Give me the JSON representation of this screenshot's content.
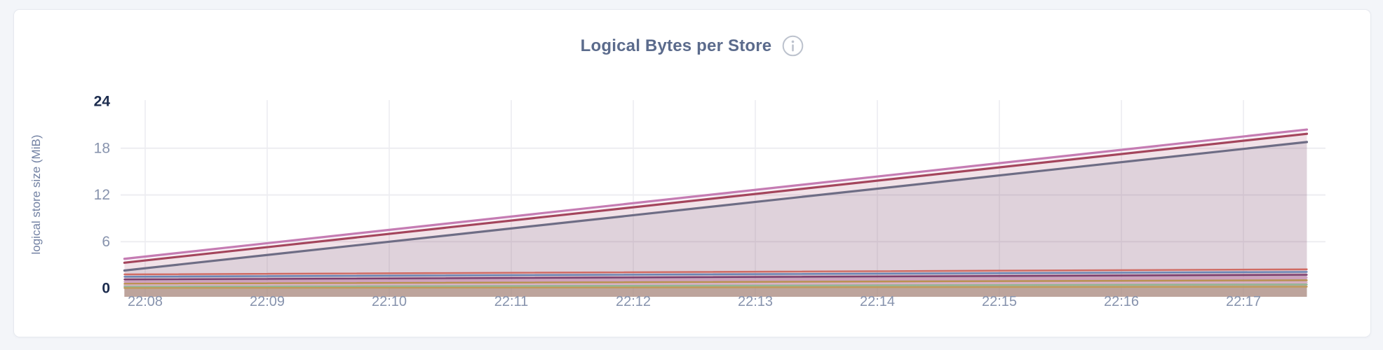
{
  "card": {
    "title": "Logical Bytes per Store"
  },
  "icons": {
    "info": "circled lowercase i"
  },
  "colors": {
    "page_background": "#f3f5f9",
    "card_background": "#ffffff",
    "card_border": "#e6e9ef",
    "title_text": "#5b6b8c",
    "axis_tick_regular": "#8793ad",
    "axis_tick_bold": "#1c2c4e",
    "axis_title": "#7180a2",
    "gridline": "#ededf1",
    "info_icon": "#bcc2cd"
  },
  "chart_data": {
    "type": "area",
    "title": "Logical Bytes per Store",
    "xlabel": "",
    "ylabel": "logical store size (MiB)",
    "x_ticks": [
      "22:08",
      "22:09",
      "22:10",
      "22:11",
      "22:12",
      "22:13",
      "22:14",
      "22:15",
      "22:16",
      "22:17"
    ],
    "y_ticks": [
      0,
      6,
      12,
      18,
      24
    ],
    "ylim": [
      0,
      24
    ],
    "grid": true,
    "legend": "none",
    "x_start_min": -0.17,
    "x_end_min": 9.52,
    "x_unit": "minutes after 22:08",
    "series": [
      {
        "color": "#c57cb3",
        "shape": "rising-line",
        "values_mib": [
          3.8,
          20.4
        ]
      },
      {
        "color": "#a4455c",
        "shape": "rising-line",
        "values_mib": [
          3.3,
          19.85
        ]
      },
      {
        "color": "#6e6d85",
        "shape": "rising-line",
        "values_mib": [
          2.3,
          18.8
        ]
      },
      {
        "color": "#cf6b63",
        "shape": "flat-line",
        "values_mib": [
          1.8,
          2.45
        ]
      },
      {
        "color": "#6a86b5",
        "shape": "flat-line",
        "values_mib": [
          1.5,
          2.12
        ]
      },
      {
        "color": "#7e3d6d",
        "shape": "flat-line",
        "values_mib": [
          1.15,
          1.75
        ]
      },
      {
        "color": "#d2a0bf",
        "shape": "flat-line",
        "values_mib": [
          0.85,
          1.38
        ]
      },
      {
        "color": "#bb9150",
        "shape": "flat-line",
        "values_mib": [
          0.6,
          1.05
        ]
      },
      {
        "color": "#d9b2c6",
        "shape": "flat-line",
        "values_mib": [
          0.4,
          0.78
        ]
      },
      {
        "color": "#93b793",
        "shape": "flat-line",
        "values_mib": [
          0.22,
          0.5
        ]
      },
      {
        "color": "#c09a5a",
        "shape": "flat-line",
        "values_mib": [
          0.05,
          0.22
        ]
      }
    ]
  }
}
